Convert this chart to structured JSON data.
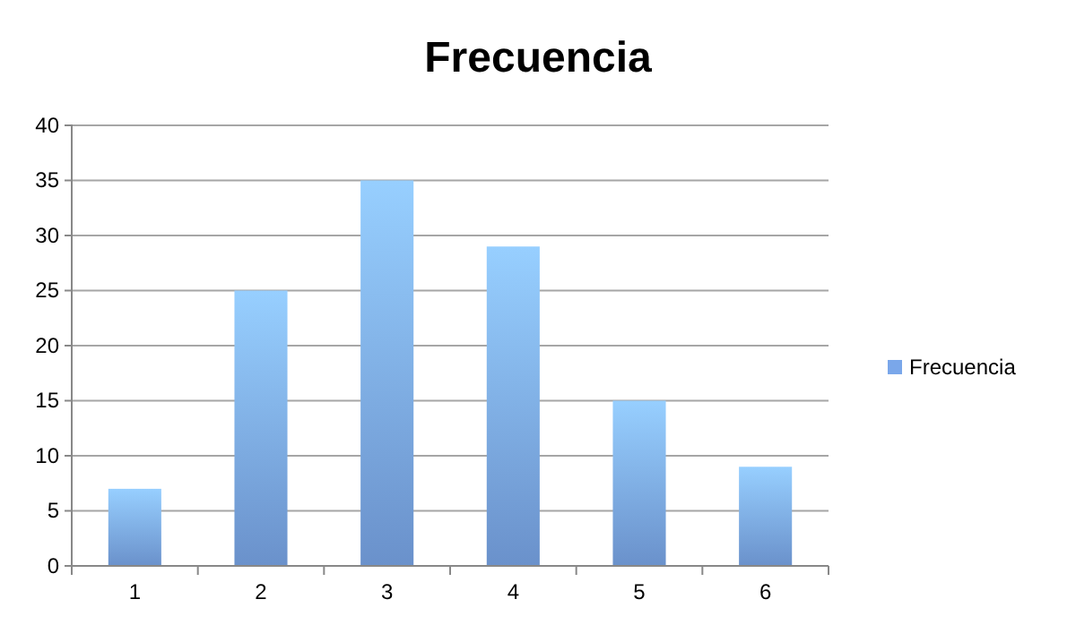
{
  "chart_data": {
    "type": "bar",
    "title": "Frecuencia",
    "categories": [
      "1",
      "2",
      "3",
      "4",
      "5",
      "6"
    ],
    "series": [
      {
        "name": "Frecuencia",
        "color": "#7aa7ea",
        "values": [
          7,
          25,
          35,
          29,
          15,
          9
        ]
      }
    ],
    "ylim": [
      0,
      40
    ],
    "yticks": [
      0,
      5,
      10,
      15,
      20,
      25,
      30,
      35,
      40
    ],
    "grid": "y",
    "legend": "right"
  }
}
